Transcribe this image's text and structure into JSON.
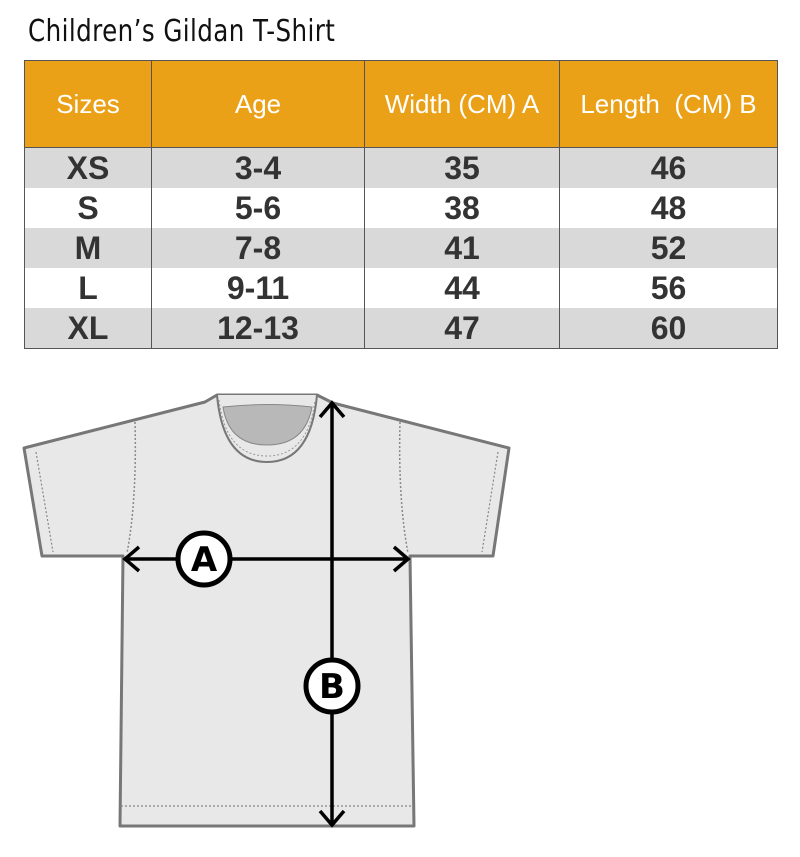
{
  "title": "Children’s Gildan T-Shirt",
  "table": {
    "headers": [
      "Sizes",
      "Age",
      "Width (CM) A",
      "Length  (CM) B"
    ],
    "rows": [
      [
        "XS",
        "3-4",
        "35",
        "46"
      ],
      [
        "S",
        "5-6",
        "38",
        "48"
      ],
      [
        "M",
        "7-8",
        "41",
        "52"
      ],
      [
        "L",
        "9-11",
        "44",
        "56"
      ],
      [
        "XL",
        "12-13",
        "47",
        "60"
      ]
    ]
  },
  "colors": {
    "header": "#eba117",
    "stripe": "#d9d9d9",
    "shirt": "#e8e8e8"
  },
  "diagram": {
    "label_a": "A",
    "label_b": "B"
  }
}
